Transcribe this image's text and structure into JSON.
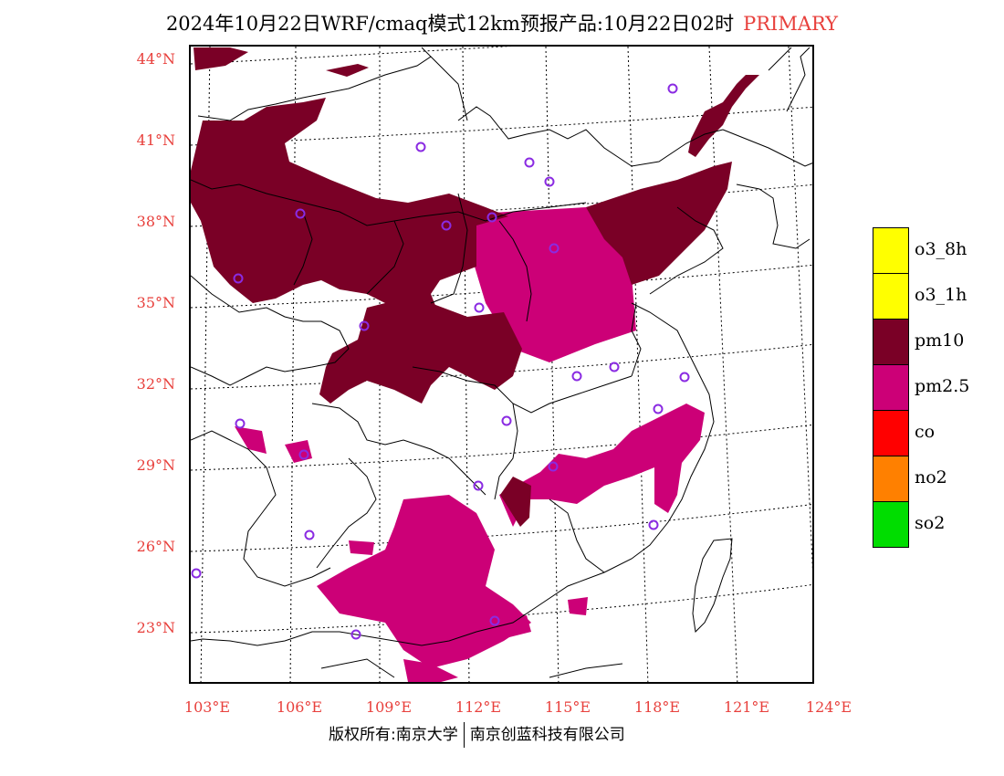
{
  "title": {
    "main": "2024年10月22日WRF/cmaq模式12km预报产品:10月22日02时",
    "tag": "PRIMARY"
  },
  "lat_labels": [
    "44°N",
    "41°N",
    "38°N",
    "35°N",
    "32°N",
    "29°N",
    "26°N",
    "23°N"
  ],
  "lon_labels": [
    "103°E",
    "106°E",
    "109°E",
    "112°E",
    "115°E",
    "118°E",
    "121°E",
    "124°E"
  ],
  "legend": [
    {
      "label": "o3_8h",
      "color": "#ffff00"
    },
    {
      "label": "o3_1h",
      "color": "#ffff00"
    },
    {
      "label": "pm10",
      "color": "#7a0026"
    },
    {
      "label": "pm2.5",
      "color": "#cc0077"
    },
    {
      "label": "co",
      "color": "#ff0000"
    },
    {
      "label": "no2",
      "color": "#ff8000"
    },
    {
      "label": "so2",
      "color": "#00dd00"
    }
  ],
  "footer": {
    "left": "版权所有:南京大学",
    "right": "南京创蓝科技有限公司"
  }
}
